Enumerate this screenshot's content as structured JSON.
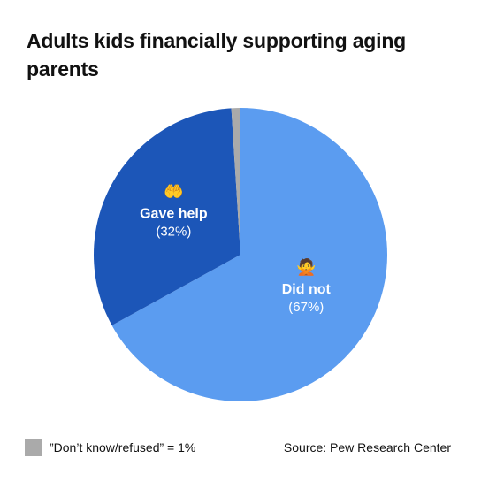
{
  "title": "Adults kids financially supporting aging parents",
  "chart_data": {
    "type": "pie",
    "slices": [
      {
        "label": "Did not",
        "value": 67,
        "value_label": "(67%)",
        "color": "#5b9cf0",
        "icon": "no-money-icon"
      },
      {
        "label": "Gave help",
        "value": 32,
        "value_label": "(32%)",
        "color": "#1c56b8",
        "icon": "raised-hands-icon"
      },
      {
        "label": "Don’t know/refused",
        "value": 1,
        "color": "#aaaaaa"
      }
    ],
    "start_angle_deg": 0,
    "direction": "clockwise",
    "legend_placement": "bottom-left"
  },
  "footer": {
    "legend_text": "”Don’t know/refused” = 1%",
    "legend_color": "#aaaaaa",
    "source": "Source: Pew Research Center"
  }
}
